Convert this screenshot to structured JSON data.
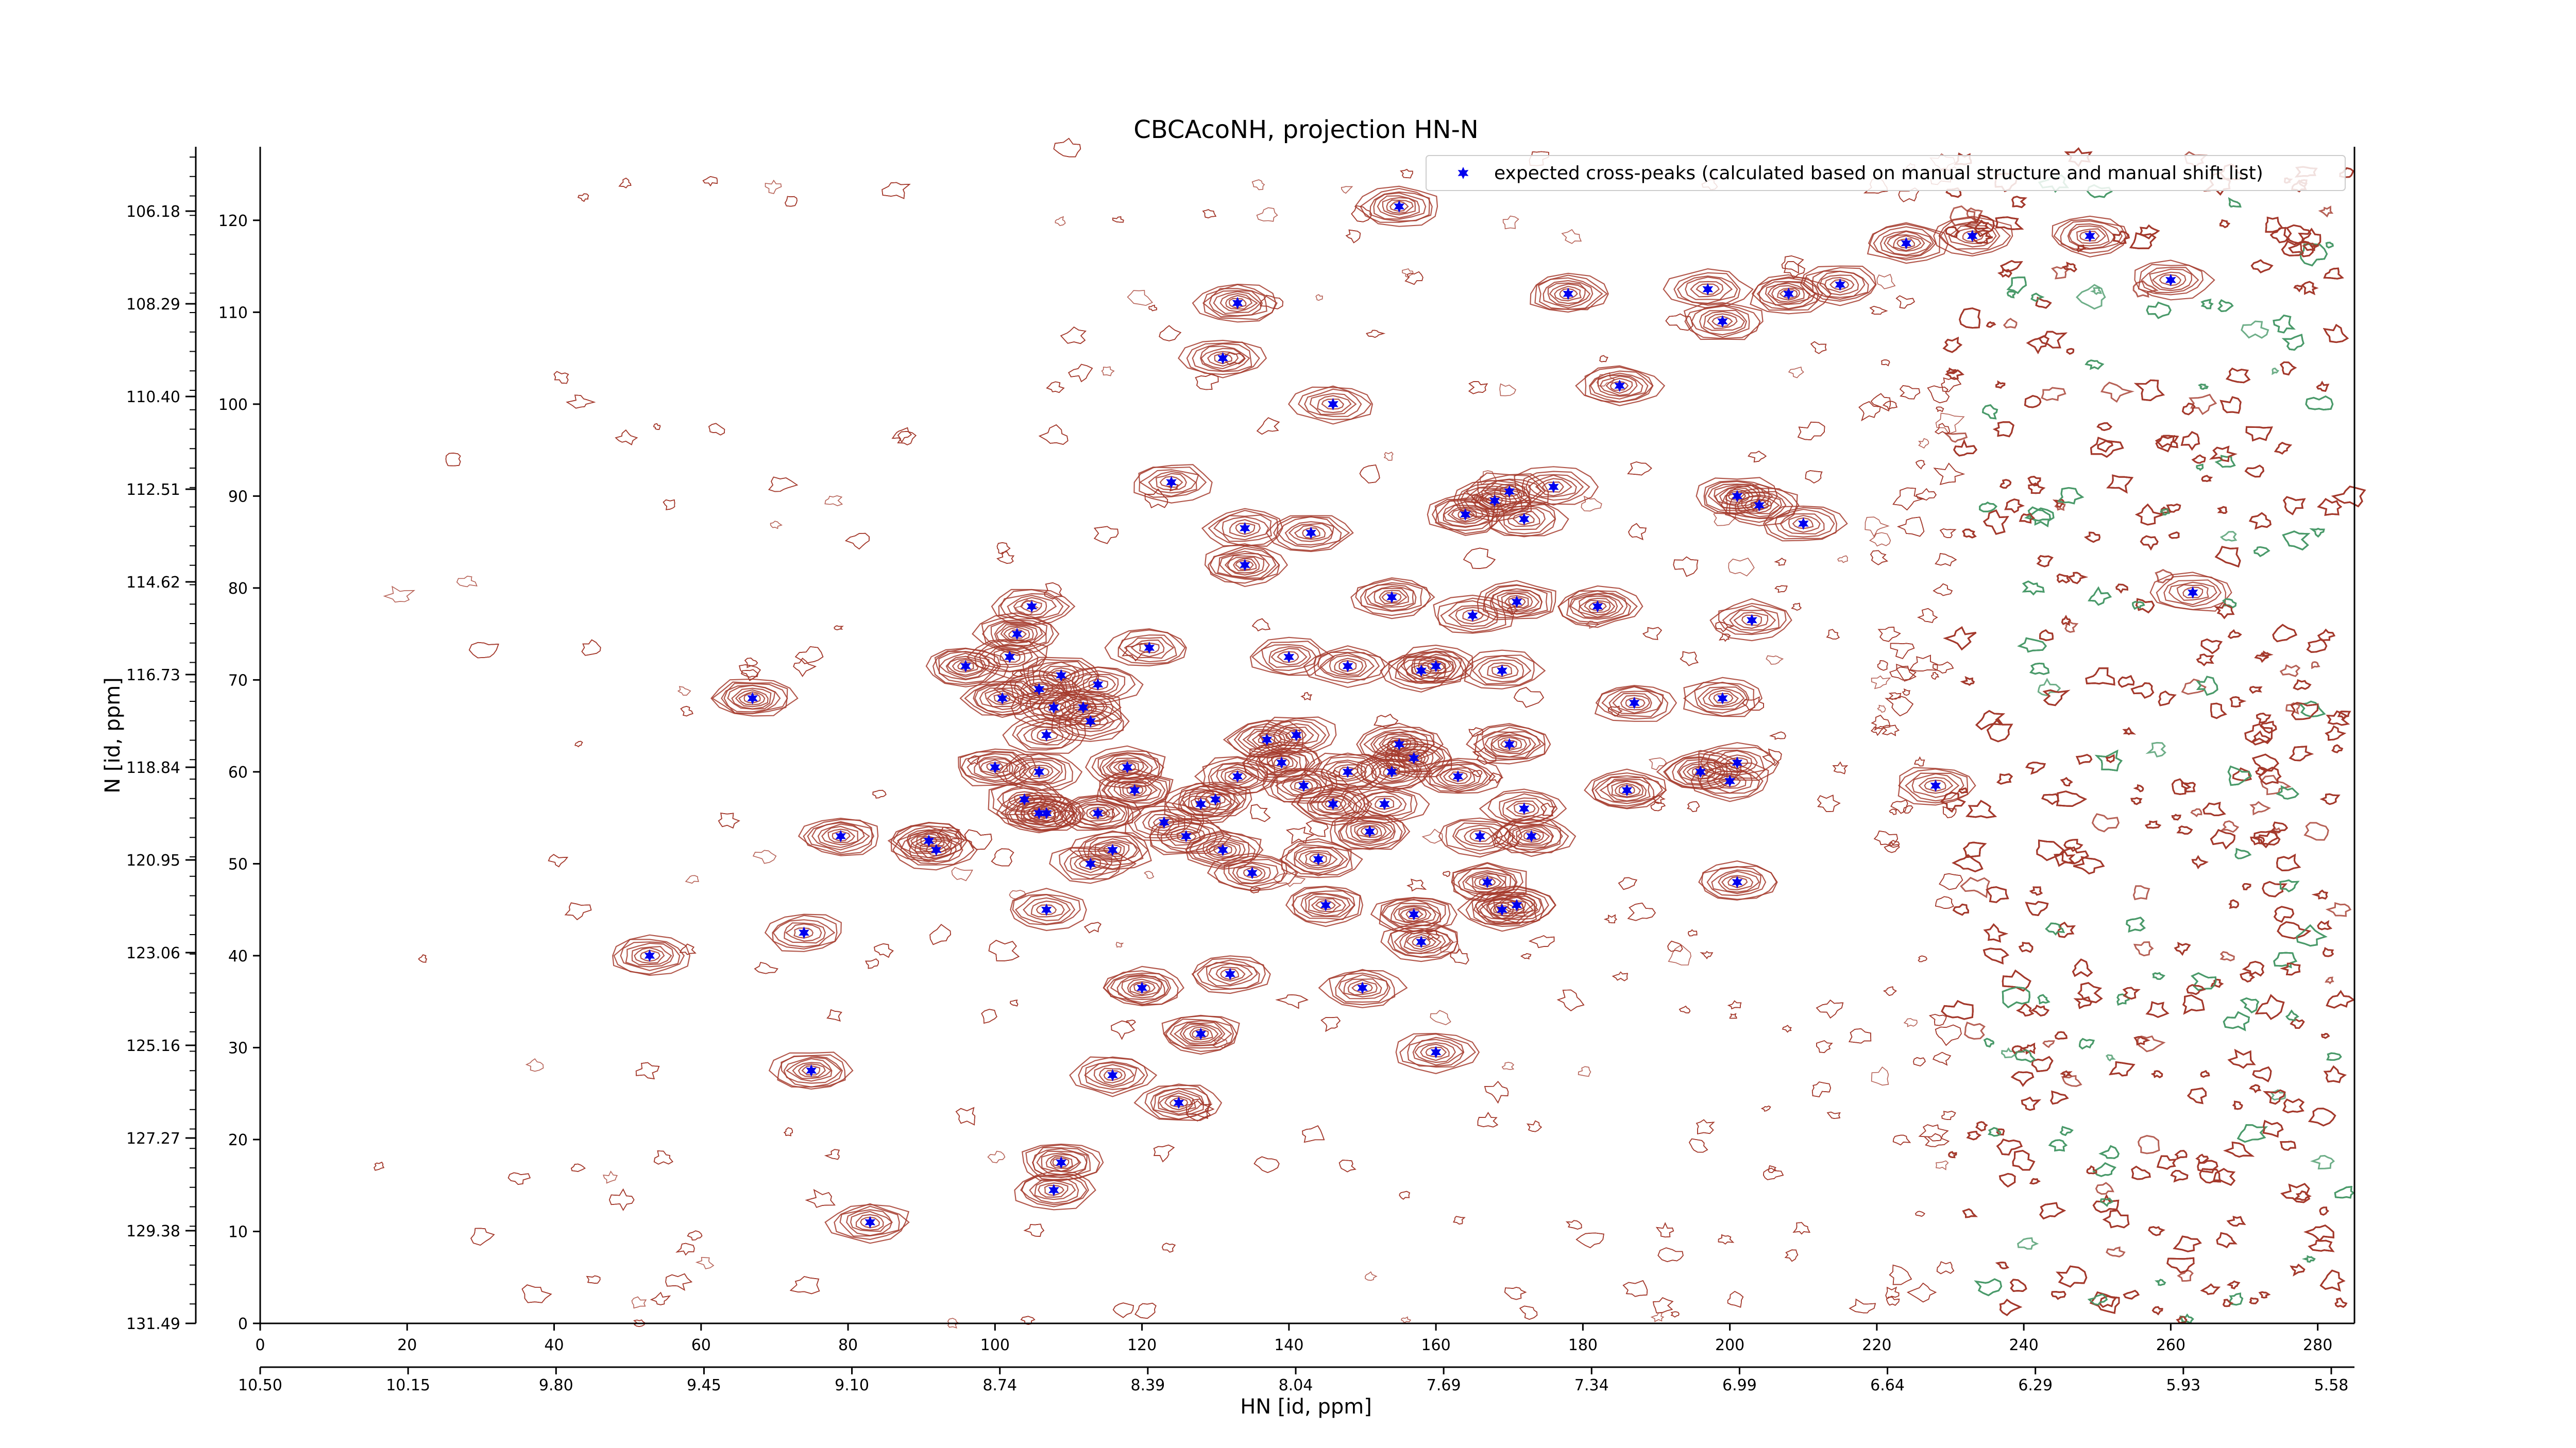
{
  "chart_data": {
    "type": "scatter",
    "title": "CBCAcoNH, projection HN-N",
    "xlabel": "HN [id, ppm]",
    "ylabel": "N [id, ppm]",
    "xlim": [
      0,
      285
    ],
    "ylim": [
      0,
      128
    ],
    "grid": false,
    "legend_position": "top-right",
    "x_ticks": [
      0,
      20,
      40,
      60,
      80,
      100,
      120,
      140,
      160,
      180,
      200,
      220,
      240,
      260,
      280
    ],
    "y_ticks": [
      0,
      10,
      20,
      30,
      40,
      50,
      60,
      70,
      80,
      90,
      100,
      110,
      120
    ],
    "x_ppm_ticks": [
      "10.50",
      "10.15",
      "9.80",
      "9.45",
      "9.10",
      "8.74",
      "8.39",
      "8.04",
      "7.69",
      "7.34",
      "6.99",
      "6.64",
      "6.29",
      "5.93",
      "5.58"
    ],
    "y_ppm_ticks": [
      "131.49",
      "129.38",
      "127.27",
      "125.16",
      "123.06",
      "120.95",
      "118.84",
      "116.73",
      "114.62",
      "112.51",
      "110.40",
      "108.29",
      "106.18"
    ],
    "series": [
      {
        "name": "expected cross-peaks (calculated based on manual structure and manual shift list)",
        "color": "#0000ee",
        "marker": "star",
        "points": [
          [
            155,
            121.5
          ],
          [
            224,
            117.5
          ],
          [
            233,
            118.3
          ],
          [
            249,
            118.3
          ],
          [
            260,
            113.5
          ],
          [
            133,
            111
          ],
          [
            178,
            112
          ],
          [
            197,
            112.5
          ],
          [
            208,
            112
          ],
          [
            215,
            113
          ],
          [
            199,
            109
          ],
          [
            131,
            105
          ],
          [
            185,
            102
          ],
          [
            146,
            100
          ],
          [
            124,
            91.5
          ],
          [
            176,
            91
          ],
          [
            168,
            89.5
          ],
          [
            170,
            90.5
          ],
          [
            164,
            88
          ],
          [
            172,
            87.5
          ],
          [
            201,
            90
          ],
          [
            204,
            89
          ],
          [
            210,
            87
          ],
          [
            134,
            86.5
          ],
          [
            143,
            86
          ],
          [
            134,
            82.5
          ],
          [
            263,
            79.5
          ],
          [
            154,
            79
          ],
          [
            171,
            78.5
          ],
          [
            182,
            78
          ],
          [
            105,
            78
          ],
          [
            165,
            77
          ],
          [
            203,
            76.5
          ],
          [
            103,
            75
          ],
          [
            121,
            73.5
          ],
          [
            102,
            72.5
          ],
          [
            140,
            72.5
          ],
          [
            96,
            71.5
          ],
          [
            148,
            71.5
          ],
          [
            158,
            71
          ],
          [
            160,
            71.5
          ],
          [
            169,
            71
          ],
          [
            109,
            70.5
          ],
          [
            114,
            69.5
          ],
          [
            106,
            69
          ],
          [
            67,
            68
          ],
          [
            101,
            68
          ],
          [
            187,
            67.5
          ],
          [
            108,
            67
          ],
          [
            112,
            67
          ],
          [
            199,
            68
          ],
          [
            113,
            65.5
          ],
          [
            107,
            64
          ],
          [
            137,
            63.5
          ],
          [
            141,
            64
          ],
          [
            155,
            63
          ],
          [
            170,
            63
          ],
          [
            100,
            60.5
          ],
          [
            106,
            60
          ],
          [
            118,
            60.5
          ],
          [
            139,
            61
          ],
          [
            148,
            60
          ],
          [
            157,
            61.5
          ],
          [
            154,
            60
          ],
          [
            163,
            59.5
          ],
          [
            196,
            60
          ],
          [
            200,
            59
          ],
          [
            201,
            61
          ],
          [
            133,
            59.5
          ],
          [
            119,
            58
          ],
          [
            142,
            58.5
          ],
          [
            186,
            58
          ],
          [
            228,
            58.5
          ],
          [
            104,
            57
          ],
          [
            130,
            57
          ],
          [
            128,
            56.5
          ],
          [
            106,
            55.5
          ],
          [
            107,
            55.5
          ],
          [
            114,
            55.5
          ],
          [
            146,
            56.5
          ],
          [
            153,
            56.5
          ],
          [
            172,
            56
          ],
          [
            123,
            54.5
          ],
          [
            151,
            53.5
          ],
          [
            126,
            53
          ],
          [
            79,
            53
          ],
          [
            91,
            52.5
          ],
          [
            92,
            51.5
          ],
          [
            116,
            51.5
          ],
          [
            131,
            51.5
          ],
          [
            166,
            53
          ],
          [
            173,
            53
          ],
          [
            144,
            50.5
          ],
          [
            113,
            50
          ],
          [
            135,
            49
          ],
          [
            167,
            48
          ],
          [
            201,
            48
          ],
          [
            107,
            45
          ],
          [
            145,
            45.5
          ],
          [
            157,
            44.5
          ],
          [
            169,
            45
          ],
          [
            171,
            45.5
          ],
          [
            74,
            42.5
          ],
          [
            158,
            41.5
          ],
          [
            53,
            40
          ],
          [
            132,
            38
          ],
          [
            120,
            36.5
          ],
          [
            150,
            36.5
          ],
          [
            128,
            31.5
          ],
          [
            160,
            29.5
          ],
          [
            75,
            27.5
          ],
          [
            116,
            27
          ],
          [
            125,
            24
          ],
          [
            109,
            17.5
          ],
          [
            108,
            14.5
          ],
          [
            83,
            11
          ]
        ]
      }
    ]
  }
}
